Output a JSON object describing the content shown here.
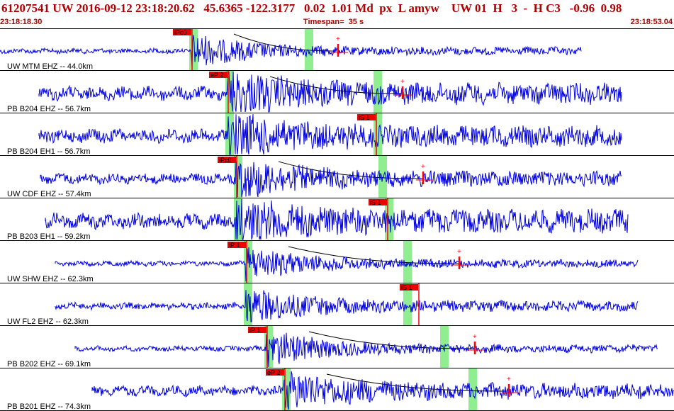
{
  "header": {
    "title": "61207541 UW 2016-09-12 23:18:20.62   45.6365 -122.3177   0.02  1.01 Md  px  L amyw    UW 01  H   3  -  H C3   -0.96  0.98",
    "start_time": "23:18:18.30",
    "timespan": "Timespan=  35 s",
    "end_time": "23:18:53.04"
  },
  "colors": {
    "trace": "#0000e0",
    "pick": "#ff0000",
    "pick_box": "#ee0000",
    "window": "#90ee90",
    "text": "#b00000"
  },
  "panels": [
    {
      "label": "UW MTM EHZ -- 44.0km",
      "p_pick": "iPc0",
      "s_pick": "",
      "has_theory": true
    },
    {
      "label": "PB B204 EHZ -- 56.7km",
      "p_pick": "eP 2",
      "s_pick": "",
      "has_theory": true
    },
    {
      "label": "PB B204 EH1 -- 56.7km",
      "p_pick": "",
      "s_pick": "iS 1",
      "has_theory": false
    },
    {
      "label": "UW CDF EHZ -- 57.4km",
      "p_pick": "iPc0",
      "s_pick": "",
      "has_theory": true
    },
    {
      "label": "PB B203 EH1 -- 59.2km",
      "p_pick": "",
      "s_pick": "iS 1",
      "has_theory": false
    },
    {
      "label": "UW SHW EHZ -- 62.3km",
      "p_pick": "iP 1",
      "s_pick": "",
      "has_theory": true
    },
    {
      "label": "UW FL2 EHZ -- 62.3km",
      "p_pick": "",
      "s_pick": "iS 1",
      "has_theory": false
    },
    {
      "label": "PB B202 EHZ -- 69.1km",
      "p_pick": "iP 1",
      "s_pick": "",
      "has_theory": true
    },
    {
      "label": "PB B201 EHZ -- 74.3km",
      "p_pick": "eP 2",
      "s_pick": "",
      "has_theory": true
    }
  ]
}
